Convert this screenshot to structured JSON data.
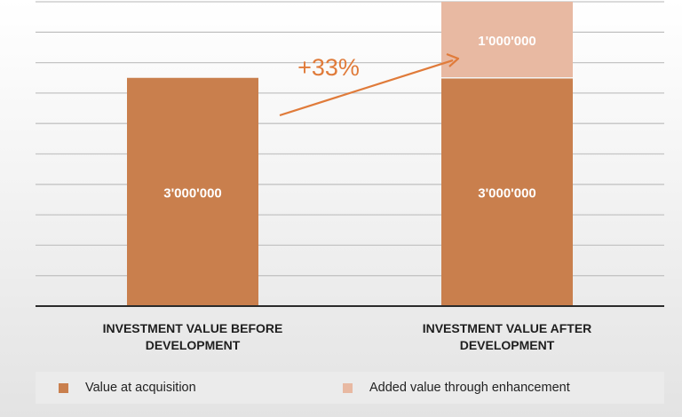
{
  "chart_data": {
    "type": "bar",
    "stacked": true,
    "categories": [
      "INVESTMENT VALUE BEFORE DEVELOPMENT",
      "INVESTMENT VALUE AFTER DEVELOPMENT"
    ],
    "category_lines": [
      [
        "INVESTMENT VALUE BEFORE",
        "DEVELOPMENT"
      ],
      [
        "INVESTMENT VALUE AFTER",
        "DEVELOPMENT"
      ]
    ],
    "series": [
      {
        "name": "Value at acquisition",
        "values": [
          3000000,
          3000000
        ],
        "labels": [
          "3'000'000",
          "3'000'000"
        ],
        "color": "#c97f4d"
      },
      {
        "name": "Added value through enhancement",
        "values": [
          0,
          1000000
        ],
        "labels": [
          "",
          "1'000'000"
        ],
        "color": "#e8b9a2"
      }
    ],
    "annotation": {
      "text": "+33%",
      "color": "#e07b3a"
    },
    "ylim": [
      0,
      4000000
    ],
    "grid": true,
    "legend_position": "bottom",
    "title": "",
    "xlabel": "",
    "ylabel": ""
  }
}
